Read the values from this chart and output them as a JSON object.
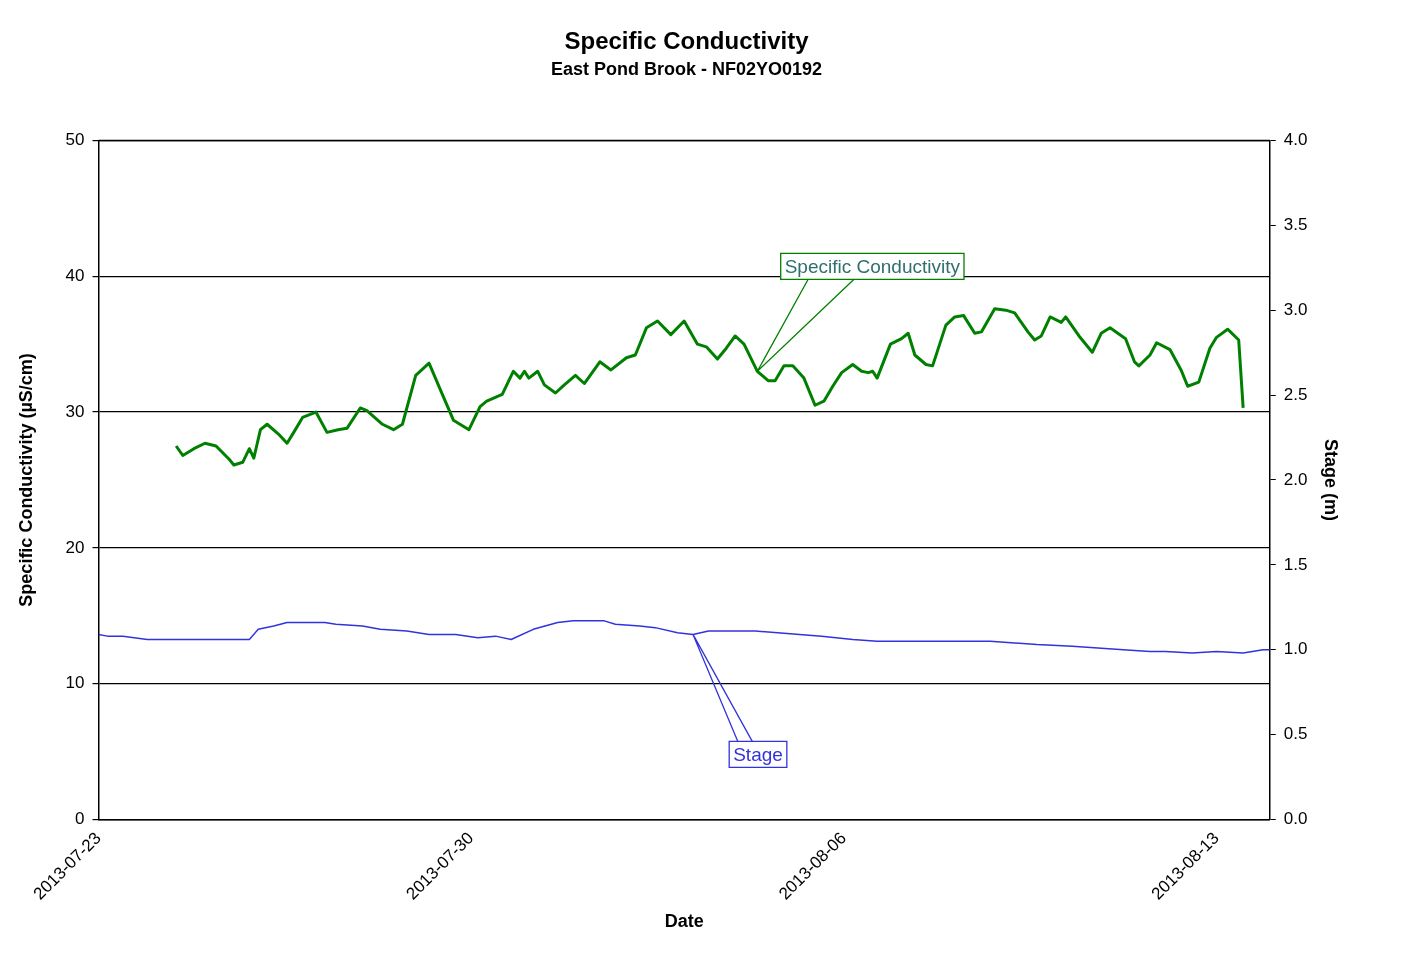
{
  "chart_data": {
    "type": "line",
    "title": "Specific Conductivity",
    "subtitle": "East Pond Brook - NF02YO0192",
    "xlabel": "Date",
    "ylabel": "Specific Conductivity (µS/cm)",
    "y2label": "Stage (m)",
    "xlim": [
      "2013-07-23",
      "2013-08-14"
    ],
    "xticks": [
      "2013-07-23",
      "2013-07-30",
      "2013-08-06",
      "2013-08-13"
    ],
    "ylim": [
      0,
      50
    ],
    "yticks": [
      0,
      10,
      20,
      30,
      40,
      50
    ],
    "y2lim": [
      0,
      4
    ],
    "y2ticks": [
      {
        "value": 0,
        "label": "0.0"
      },
      {
        "value": 0.5,
        "label": "0.5"
      },
      {
        "value": 1,
        "label": "1.0"
      },
      {
        "value": 1.5,
        "label": "1.5"
      },
      {
        "value": 2,
        "label": "2.0"
      },
      {
        "value": 2.5,
        "label": "2.5"
      },
      {
        "value": 3,
        "label": "3.0"
      },
      {
        "value": 3.5,
        "label": "3.5"
      },
      {
        "value": 4,
        "label": "4.0"
      }
    ],
    "grid": "y",
    "legend": false,
    "marker": "none",
    "line_style": "solid",
    "series": [
      {
        "name": "Specific Conductivity",
        "color": "#008000",
        "x": [
          "2013-07-24T11:00",
          "2013-07-24T14:00",
          "2013-07-24T19:00",
          "2013-07-25T00:00",
          "2013-07-25T05:00",
          "2013-07-25T11:00",
          "2013-07-25T13:00",
          "2013-07-25T17:00",
          "2013-07-25T20:00",
          "2013-07-25T22:00",
          "2013-07-26T01:00",
          "2013-07-26T04:00",
          "2013-07-26T09:00",
          "2013-07-26T13:00",
          "2013-07-26T16:00",
          "2013-07-26T20:00",
          "2013-07-27T02:00",
          "2013-07-27T07:00",
          "2013-07-27T12:00",
          "2013-07-27T16:00",
          "2013-07-27T22:00",
          "2013-07-28T01:00",
          "2013-07-28T08:00",
          "2013-07-28T13:00",
          "2013-07-28T17:00",
          "2013-07-28T23:00",
          "2013-07-29T05:00",
          "2013-07-29T11:00",
          "2013-07-29T16:00",
          "2013-07-29T23:00",
          "2013-07-30T04:00",
          "2013-07-30T07:00",
          "2013-07-30T14:00",
          "2013-07-30T19:00",
          "2013-07-30T22:00",
          "2013-07-31T00:00",
          "2013-07-31T02:00",
          "2013-07-31T06:00",
          "2013-07-31T09:00",
          "2013-07-31T14:00",
          "2013-07-31T18:00",
          "2013-07-31T23:00",
          "2013-08-01T03:00",
          "2013-08-01T10:00",
          "2013-08-01T15:00",
          "2013-08-01T22:00",
          "2013-08-02T02:00",
          "2013-08-02T07:00",
          "2013-08-02T12:00",
          "2013-08-02T18:00",
          "2013-08-03T00:00",
          "2013-08-03T06:00",
          "2013-08-03T10:00",
          "2013-08-03T15:00",
          "2013-08-03T19:00",
          "2013-08-03T23:00",
          "2013-08-04T03:00",
          "2013-08-04T09:00",
          "2013-08-04T14:00",
          "2013-08-04T17:00",
          "2013-08-04T21:00",
          "2013-08-05T01:00",
          "2013-08-05T06:00",
          "2013-08-05T11:00",
          "2013-08-05T15:00",
          "2013-08-05T19:00",
          "2013-08-05T23:00",
          "2013-08-06T04:00",
          "2013-08-06T08:00",
          "2013-08-06T11:00",
          "2013-08-06T13:00",
          "2013-08-06T15:00",
          "2013-08-06T21:00",
          "2013-08-07T02:00",
          "2013-08-07T05:00",
          "2013-08-07T08:00",
          "2013-08-07T13:00",
          "2013-08-07T16:00",
          "2013-08-07T22:00",
          "2013-08-08T02:00",
          "2013-08-08T06:00",
          "2013-08-08T11:00",
          "2013-08-08T14:00",
          "2013-08-08T20:00",
          "2013-08-09T01:00",
          "2013-08-09T05:00",
          "2013-08-09T11:00",
          "2013-08-09T14:00",
          "2013-08-09T17:00",
          "2013-08-09T21:00",
          "2013-08-10T02:00",
          "2013-08-10T04:00",
          "2013-08-10T10:00",
          "2013-08-10T16:00",
          "2013-08-10T20:00",
          "2013-08-11T00:00",
          "2013-08-11T07:00",
          "2013-08-11T11:00",
          "2013-08-11T13:00",
          "2013-08-11T18:00",
          "2013-08-11T21:00",
          "2013-08-12T03:00",
          "2013-08-12T08:00",
          "2013-08-12T11:00",
          "2013-08-12T16:00",
          "2013-08-12T21:00",
          "2013-08-13T00:00",
          "2013-08-13T05:00",
          "2013-08-13T10:00",
          "2013-08-13T12:00"
        ],
        "values": [
          27.5,
          26.8,
          27.3,
          27.7,
          27.5,
          26.5,
          26.1,
          26.3,
          27.3,
          26.6,
          28.7,
          29.1,
          28.4,
          27.7,
          28.5,
          29.6,
          30.0,
          28.5,
          28.7,
          28.8,
          30.3,
          30.1,
          29.1,
          28.7,
          29.1,
          32.7,
          33.6,
          31.3,
          29.4,
          28.7,
          30.4,
          30.8,
          31.3,
          33.0,
          32.5,
          33.0,
          32.5,
          33.0,
          32.0,
          31.4,
          32.0,
          32.7,
          32.1,
          33.7,
          33.1,
          34.0,
          34.2,
          36.2,
          36.7,
          35.7,
          36.7,
          35.0,
          34.8,
          33.9,
          34.7,
          35.6,
          35.0,
          33.0,
          32.3,
          32.3,
          33.4,
          33.4,
          32.5,
          30.5,
          30.8,
          31.9,
          32.9,
          33.5,
          33.0,
          32.9,
          33.0,
          32.5,
          35.0,
          35.4,
          35.8,
          34.2,
          33.5,
          33.4,
          36.4,
          37.0,
          37.1,
          35.8,
          35.9,
          37.6,
          37.5,
          37.3,
          35.9,
          35.3,
          35.6,
          37.0,
          36.6,
          37.0,
          35.6,
          34.4,
          35.8,
          36.2,
          35.4,
          33.7,
          33.4,
          34.2,
          35.1,
          34.6,
          33.1,
          31.9,
          32.2,
          34.7,
          35.5,
          36.1,
          35.3,
          30.3
        ]
      },
      {
        "name": "Stage",
        "color": "#3333dd",
        "axis": "y2",
        "x": [
          "2013-07-23T00:00",
          "2013-07-23T04:00",
          "2013-07-23T11:00",
          "2013-07-23T22:00",
          "2013-07-24T06:00",
          "2013-07-25T20:00",
          "2013-07-26T00:00",
          "2013-07-26T07:00",
          "2013-07-26T13:00",
          "2013-07-27T06:00",
          "2013-07-27T11:00",
          "2013-07-27T23:00",
          "2013-07-28T07:00",
          "2013-07-28T19:00",
          "2013-07-29T05:00",
          "2013-07-29T17:00",
          "2013-07-30T03:00",
          "2013-07-30T11:00",
          "2013-07-30T18:00",
          "2013-07-31T04:00",
          "2013-07-31T15:00",
          "2013-07-31T22:00",
          "2013-08-01T12:00",
          "2013-08-01T17:00",
          "2013-08-02T04:00",
          "2013-08-02T11:00",
          "2013-08-02T21:00",
          "2013-08-03T04:00",
          "2013-08-03T11:00",
          "2013-08-04T08:00",
          "2013-08-05T04:00",
          "2013-08-05T14:00",
          "2013-08-06T04:00",
          "2013-08-06T15:00",
          "2013-08-07T12:00",
          "2013-08-08T18:00",
          "2013-08-09T15:00",
          "2013-08-10T07:00",
          "2013-08-11T06:00",
          "2013-08-11T18:00",
          "2013-08-12T01:00",
          "2013-08-12T13:00",
          "2013-08-13T00:00",
          "2013-08-13T12:00",
          "2013-08-13T21:00",
          "2013-08-14T00:00"
        ],
        "values": [
          1.09,
          1.08,
          1.08,
          1.06,
          1.06,
          1.06,
          1.12,
          1.14,
          1.16,
          1.16,
          1.15,
          1.14,
          1.12,
          1.11,
          1.09,
          1.09,
          1.07,
          1.08,
          1.06,
          1.12,
          1.16,
          1.17,
          1.17,
          1.15,
          1.14,
          1.13,
          1.1,
          1.09,
          1.11,
          1.11,
          1.09,
          1.08,
          1.06,
          1.05,
          1.05,
          1.05,
          1.03,
          1.02,
          1.0,
          0.99,
          0.99,
          0.98,
          0.99,
          0.98,
          1.0,
          1.0
        ]
      }
    ]
  }
}
